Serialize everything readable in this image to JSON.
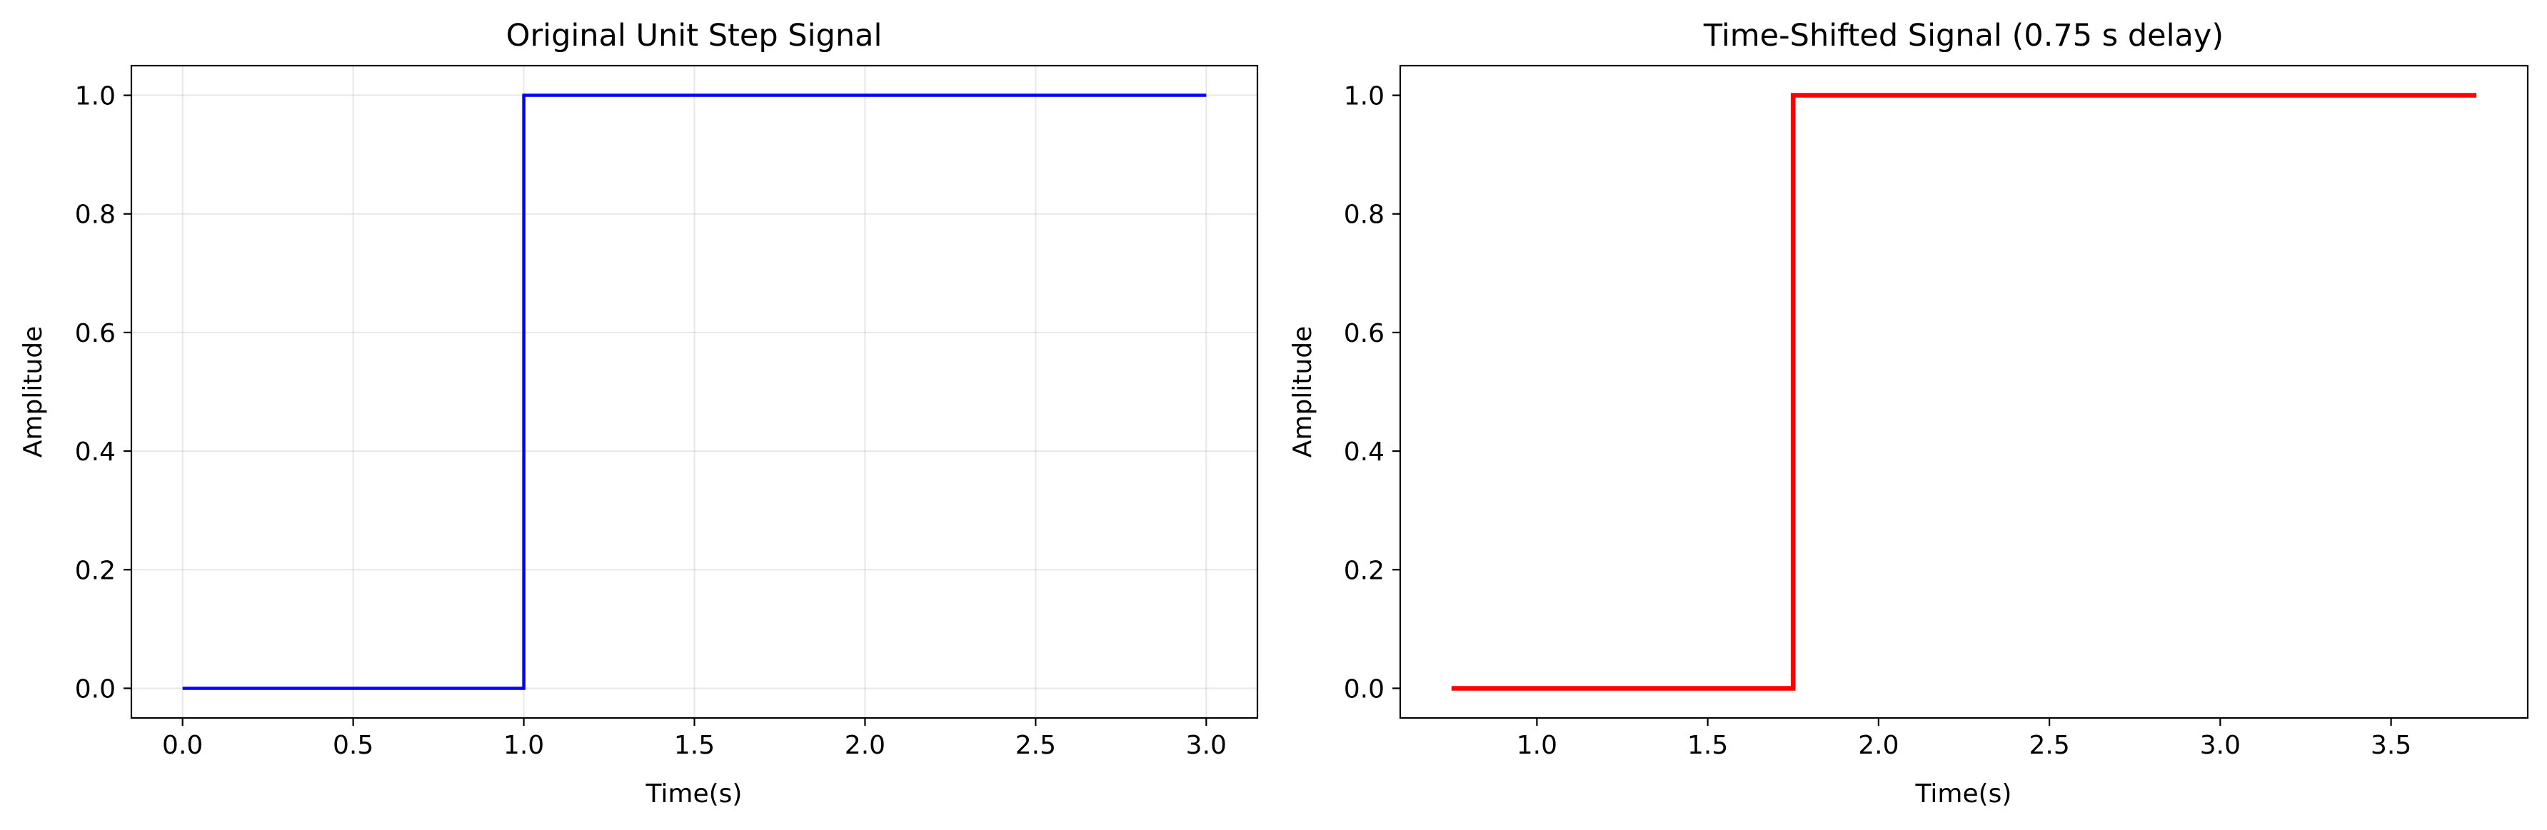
{
  "chart_data": [
    {
      "type": "line",
      "step": "post",
      "title": "Original Unit Step Signal",
      "xlabel": "Time(s)",
      "ylabel": "Amplitude",
      "xlim": [
        -0.15,
        3.15
      ],
      "ylim": [
        -0.05,
        1.05
      ],
      "xticks": [
        0.0,
        0.5,
        1.0,
        1.5,
        2.0,
        2.5,
        3.0
      ],
      "xtick_labels": [
        "0.0",
        "0.5",
        "1.0",
        "1.5",
        "2.0",
        "2.5",
        "3.0"
      ],
      "yticks": [
        0.0,
        0.2,
        0.4,
        0.6,
        0.8,
        1.0
      ],
      "ytick_labels": [
        "0.0",
        "0.2",
        "0.4",
        "0.6",
        "0.8",
        "1.0"
      ],
      "grid": true,
      "series": [
        {
          "color": "#0000ff",
          "x": [
            0.0,
            1.0,
            1.0,
            3.0
          ],
          "y": [
            0.0,
            0.0,
            1.0,
            1.0
          ]
        }
      ]
    },
    {
      "type": "line",
      "step": "post",
      "title": "Time-Shifted Signal (0.75 s delay)",
      "xlabel": "Time(s)",
      "ylabel": "Amplitude",
      "xlim": [
        0.6,
        3.9
      ],
      "ylim": [
        -0.05,
        1.05
      ],
      "xticks": [
        1.0,
        1.5,
        2.0,
        2.5,
        3.0,
        3.5
      ],
      "xtick_labels": [
        "1.0",
        "1.5",
        "2.0",
        "2.5",
        "3.0",
        "3.5"
      ],
      "yticks": [
        0.0,
        0.2,
        0.4,
        0.6,
        0.8,
        1.0
      ],
      "ytick_labels": [
        "0.0",
        "0.2",
        "0.4",
        "0.6",
        "0.8",
        "1.0"
      ],
      "grid": false,
      "series": [
        {
          "color": "#ff0000",
          "x": [
            0.75,
            1.75,
            1.75,
            3.75
          ],
          "y": [
            0.0,
            0.0,
            1.0,
            1.0
          ]
        }
      ]
    }
  ]
}
